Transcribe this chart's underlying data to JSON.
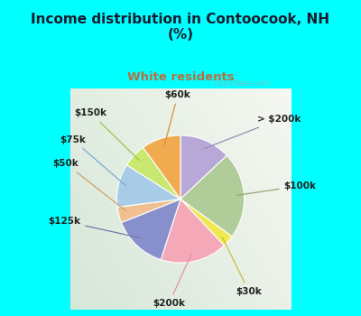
{
  "title": "Income distribution in Contoocook, NH\n(%)",
  "subtitle": "White residents",
  "title_color": "#1a1a2e",
  "subtitle_color": "#b87040",
  "bg_cyan": "#00ffff",
  "bg_chart_gradient_colors": [
    "#e8f5f0",
    "#d0eee8",
    "#c8f0e8"
  ],
  "labels": [
    "> $200k",
    "$100k",
    "$30k",
    "$200k",
    "$125k",
    "$50k",
    "$75k",
    "$150k",
    "$60k"
  ],
  "values": [
    13,
    22,
    3,
    17,
    14,
    4,
    11,
    6,
    10
  ],
  "colors": [
    "#b8a8d8",
    "#b0cc98",
    "#f0e850",
    "#f4a8b8",
    "#8890cc",
    "#f0c090",
    "#a8cce8",
    "#c8e870",
    "#f0aa50"
  ],
  "wedge_linewidth": 0.8,
  "wedge_edgecolor": "#ffffff",
  "figsize": [
    4.0,
    3.5
  ],
  "dpi": 100,
  "watermark": "City-Data.com",
  "label_fontsize": 7.5
}
